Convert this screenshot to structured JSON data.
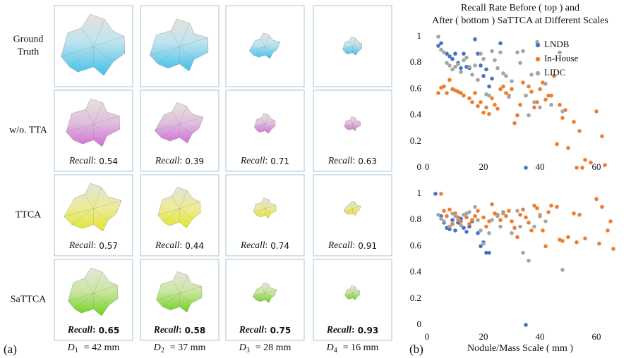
{
  "figure": {
    "rows": [
      {
        "label": [
          "Ground",
          "Truth"
        ]
      },
      {
        "label": [
          "w/o. TTA"
        ],
        "recall": [
          0.54,
          0.39,
          0.71,
          0.63
        ]
      },
      {
        "label": [
          "TTCA"
        ],
        "recall": [
          0.57,
          0.44,
          0.74,
          0.91
        ]
      },
      {
        "label": [
          "SaTTCA"
        ],
        "recall": [
          0.65,
          0.58,
          0.75,
          0.93
        ],
        "bold": true
      }
    ],
    "recall_label": "Recall",
    "recall_sep": ":",
    "columns": [
      {
        "symbol": "D",
        "sub": "1",
        "text": "= 42 mm"
      },
      {
        "symbol": "D",
        "sub": "2",
        "text": "= 37 mm"
      },
      {
        "symbol": "D",
        "sub": "3",
        "text": "= 28 mm"
      },
      {
        "symbol": "D",
        "sub": "4",
        "text": "= 16 mm"
      }
    ],
    "panel_a": "(a)",
    "panel_b": "(b)"
  },
  "chart_data": [
    {
      "type": "scatter",
      "title": [
        "Recall Rate Before ( top ) and",
        "After ( bottom ) SaTTCA at Different Scales"
      ],
      "xlim": [
        0,
        66
      ],
      "xticks": [
        0,
        20,
        40,
        60
      ],
      "ylim": [
        0,
        1
      ],
      "yticks": [
        0,
        0.2,
        0.4,
        0.6,
        0.8,
        1
      ],
      "legend": "upper right",
      "series": [
        {
          "name": "LNDB",
          "color": "#4472c4",
          "x": [
            4,
            5,
            7,
            8,
            9,
            10,
            11,
            12,
            13,
            14,
            15,
            17,
            18,
            19,
            20,
            21,
            22,
            23,
            26,
            35
          ],
          "values": [
            0.93,
            0.95,
            0.87,
            0.85,
            0.83,
            0.87,
            0.8,
            0.76,
            0.87,
            0.77,
            0.76,
            0.98,
            0.87,
            0.78,
            0.7,
            0.75,
            0.62,
            0.68,
            0.95,
            0
          ]
        },
        {
          "name": "In-House",
          "color": "#ed7d31",
          "x": [
            4,
            5,
            6,
            7,
            8,
            9,
            10,
            11,
            12,
            13,
            15,
            16,
            17,
            18,
            19,
            20,
            21,
            22,
            23,
            24,
            25,
            26,
            27,
            28,
            29,
            30,
            31,
            32,
            33,
            34,
            35,
            36,
            37,
            38,
            39,
            40,
            41,
            42,
            43,
            44,
            45,
            46,
            47,
            48,
            49,
            50,
            52,
            53,
            54,
            55,
            56,
            58,
            60,
            62,
            63
          ],
          "values": [
            0.57,
            0.61,
            0.62,
            0.57,
            0.67,
            0.6,
            0.59,
            0.58,
            0.57,
            0.55,
            0.53,
            0.5,
            0.57,
            0.47,
            0.5,
            0.42,
            0.46,
            0.41,
            0.53,
            0.48,
            0.45,
            0.6,
            0.62,
            0.57,
            0.55,
            0.6,
            0.34,
            0.4,
            0.48,
            0.65,
            0.55,
            0.62,
            0.58,
            0.46,
            0.5,
            0.6,
            0.65,
            0.52,
            0.55,
            0.55,
            0.7,
            0.18,
            0.48,
            0.38,
            0.44,
            0.15,
            0.35,
            0,
            0.28,
            0,
            0.06,
            0.04,
            0.43,
            0.24,
            0.02
          ]
        },
        {
          "name": "LIDC",
          "color": "#a5a5a5",
          "x": [
            4,
            5,
            6,
            7,
            8,
            9,
            10,
            11,
            12,
            13,
            14,
            15,
            16,
            17,
            18,
            19,
            20,
            21,
            22,
            23,
            24,
            25,
            26,
            27,
            28,
            29,
            30,
            32,
            33,
            34,
            35,
            36,
            37,
            38,
            39,
            40,
            42,
            44,
            47,
            48
          ],
          "values": [
            1,
            0.9,
            0.88,
            0.8,
            0.78,
            0.75,
            0.77,
            0.79,
            0.73,
            0.82,
            0.84,
            0.77,
            0.71,
            0.78,
            0.67,
            0.87,
            0.83,
            0.56,
            0.55,
            0.89,
            0.82,
            0.76,
            0.88,
            0.72,
            0.7,
            0.54,
            0.66,
            0.88,
            0.8,
            0.89,
            0.55,
            0.4,
            0.71,
            0.5,
            0.96,
            0.46,
            0.64,
            0.48,
            0.88,
            0.43
          ]
        }
      ]
    },
    {
      "type": "scatter",
      "xlabel": "Nodule/Mass Scale ( mm )",
      "xlim": [
        0,
        66
      ],
      "xticks": [
        0,
        20,
        40,
        60
      ],
      "ylim": [
        0,
        1
      ],
      "yticks": [
        0,
        0.2,
        0.4,
        0.6,
        0.8,
        1
      ],
      "series": [
        {
          "color": "#4472c4",
          "x": [
            3,
            5,
            6,
            7,
            8,
            9,
            10,
            11,
            12,
            13,
            14,
            15,
            16,
            18,
            19,
            20,
            21,
            22,
            35
          ],
          "values": [
            1,
            0.83,
            0.78,
            0.74,
            0.73,
            0.8,
            0.72,
            0.78,
            0.81,
            0.74,
            0.71,
            0.75,
            0.79,
            0.7,
            0.6,
            0.63,
            0.55,
            0.55,
            0
          ]
        },
        {
          "color": "#ed7d31",
          "x": [
            5,
            6,
            7,
            8,
            9,
            10,
            11,
            12,
            14,
            15,
            16,
            17,
            18,
            20,
            21,
            22,
            23,
            24,
            25,
            26,
            27,
            28,
            29,
            30,
            31,
            32,
            33,
            34,
            35,
            36,
            37,
            38,
            39,
            40,
            41,
            42,
            43,
            44,
            46,
            47,
            48,
            50,
            52,
            53,
            54,
            56,
            60,
            61,
            62,
            64,
            65,
            66
          ],
          "values": [
            1,
            0.87,
            0.83,
            0.88,
            0.77,
            0.85,
            0.82,
            0.79,
            0.82,
            0.77,
            0.8,
            0.83,
            0.87,
            0.82,
            0.75,
            0.79,
            0.92,
            0.85,
            0.84,
            0.8,
            0.86,
            0.83,
            0.87,
            0.79,
            0.74,
            0.67,
            0.84,
            0.88,
            0.82,
            0.78,
            0.72,
            0.91,
            0.89,
            0.83,
            0.72,
            0.6,
            0.86,
            0.91,
            0.9,
            0.65,
            0.64,
            0.67,
            0.85,
            0.63,
            0.84,
            0.66,
            0.96,
            0.62,
            0.9,
            0.72,
            0.79,
            0.58
          ]
        },
        {
          "color": "#a5a5a5",
          "x": [
            4,
            5,
            6,
            8,
            9,
            10,
            11,
            12,
            13,
            14,
            15,
            17,
            18,
            19,
            20,
            22,
            23,
            25,
            26,
            27,
            30,
            32,
            33,
            34,
            36,
            38,
            40,
            42,
            48
          ],
          "values": [
            0.84,
            0.81,
            0.79,
            0.75,
            0.85,
            0.83,
            0.8,
            0.76,
            0.84,
            0.85,
            0.86,
            0.9,
            0.8,
            0.72,
            0.62,
            0.7,
            0.8,
            0.83,
            0.75,
            0.85,
            0.7,
            0.87,
            0.75,
            0.55,
            0.49,
            0.75,
            0.84,
            0.79,
            0.42
          ]
        }
      ]
    }
  ]
}
